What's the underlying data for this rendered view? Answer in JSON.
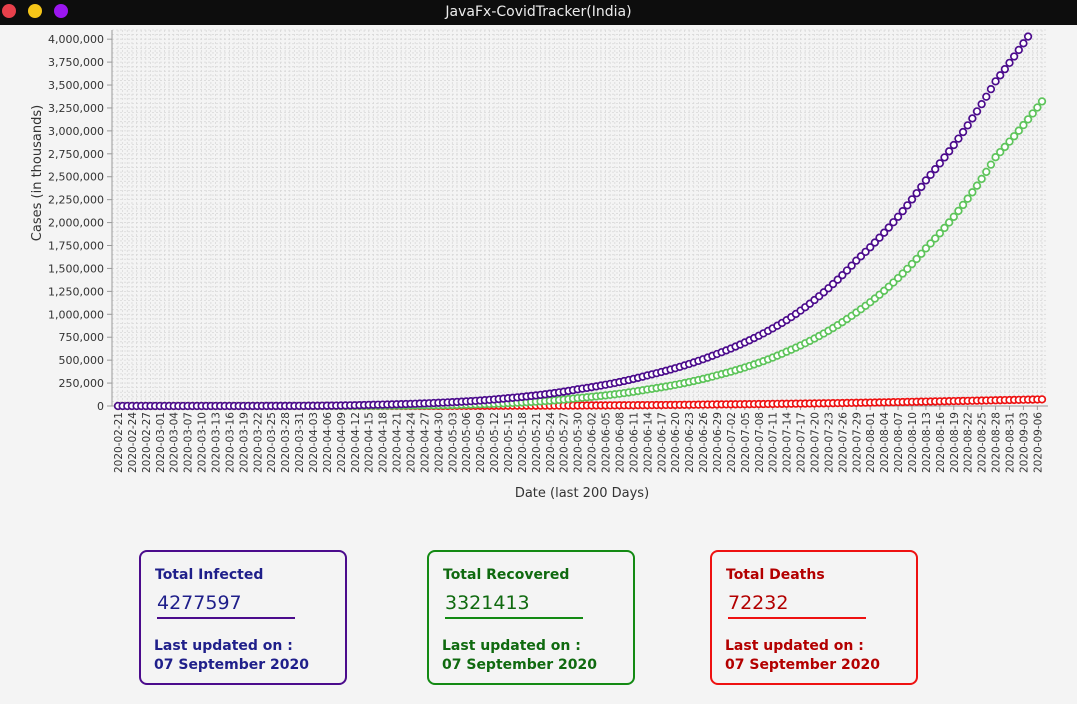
{
  "window": {
    "title": "JavaFx-CovidTracker(India)"
  },
  "colors": {
    "infected": "#4b0b8c",
    "recovered": "#5dc45a",
    "deaths": "#ee1111",
    "infected_text": "#1f1f8a",
    "recovered_text": "#0f6a0f",
    "deaths_text": "#b30000"
  },
  "chart_data": {
    "type": "scatter",
    "xlabel": "Date (last 200 Days)",
    "ylabel": "Cases (in thousands)",
    "ylim": [
      0,
      4100000
    ],
    "grid": true,
    "x_range": [
      "2020-02-21",
      "2020-09-07"
    ],
    "x_tick_labels": [
      "2020-02-21",
      "2020-02-24",
      "2020-02-27",
      "2020-03-01",
      "2020-03-04",
      "2020-03-07",
      "2020-03-10",
      "2020-03-13",
      "2020-03-16",
      "2020-03-19",
      "2020-03-22",
      "2020-03-25",
      "2020-03-28",
      "2020-03-31",
      "2020-04-03",
      "2020-04-06",
      "2020-04-09",
      "2020-04-12",
      "2020-04-15",
      "2020-04-18",
      "2020-04-21",
      "2020-04-24",
      "2020-04-27",
      "2020-04-30",
      "2020-05-03",
      "2020-05-06",
      "2020-05-09",
      "2020-05-12",
      "2020-05-15",
      "2020-05-18",
      "2020-05-21",
      "2020-05-24",
      "2020-05-27",
      "2020-05-30",
      "2020-06-02",
      "2020-06-05",
      "2020-06-08",
      "2020-06-11",
      "2020-06-14",
      "2020-06-17",
      "2020-06-20",
      "2020-06-23",
      "2020-06-26",
      "2020-06-29",
      "2020-07-02",
      "2020-07-05",
      "2020-07-08",
      "2020-07-11",
      "2020-07-14",
      "2020-07-17",
      "2020-07-20",
      "2020-07-23",
      "2020-07-26",
      "2020-07-29",
      "2020-08-01",
      "2020-08-04",
      "2020-08-07",
      "2020-08-10",
      "2020-08-13",
      "2020-08-16",
      "2020-08-19",
      "2020-08-22",
      "2020-08-25",
      "2020-08-28",
      "2020-08-31",
      "2020-09-03",
      "2020-09-06"
    ],
    "y_tick_labels": [
      "0",
      "250,000",
      "500,000",
      "750,000",
      "1,000,000",
      "1,250,000",
      "1,500,000",
      "1,750,000",
      "2,000,000",
      "2,250,000",
      "2,500,000",
      "2,750,000",
      "3,000,000",
      "3,250,000",
      "3,500,000",
      "3,750,000",
      "4,000,000"
    ],
    "series": [
      {
        "name": "Total Infected",
        "color": "#4b0b8c",
        "x": [
          "2020-02-21",
          "2020-03-10",
          "2020-03-31",
          "2020-04-15",
          "2020-04-30",
          "2020-05-15",
          "2020-05-30",
          "2020-06-14",
          "2020-06-29",
          "2020-07-14",
          "2020-07-29",
          "2020-08-13",
          "2020-08-28",
          "2020-09-06"
        ],
        "values": [
          3,
          50,
          1400,
          12000,
          35000,
          85000,
          182000,
          333000,
          567000,
          936000,
          1585000,
          2460000,
          3540000,
          4180000
        ]
      },
      {
        "name": "Total Recovered",
        "color": "#5dc45a",
        "x": [
          "2020-02-21",
          "2020-03-10",
          "2020-03-31",
          "2020-04-15",
          "2020-04-30",
          "2020-05-15",
          "2020-05-30",
          "2020-06-14",
          "2020-06-29",
          "2020-07-14",
          "2020-07-29",
          "2020-08-13",
          "2020-08-28",
          "2020-09-07"
        ],
        "values": [
          0,
          4,
          130,
          1500,
          9000,
          32000,
          86000,
          180000,
          334000,
          592000,
          1019000,
          1719000,
          2713000,
          3321413
        ]
      },
      {
        "name": "Total Deaths",
        "color": "#ee1111",
        "x": [
          "2020-02-21",
          "2020-03-10",
          "2020-03-31",
          "2020-04-15",
          "2020-04-30",
          "2020-05-15",
          "2020-05-30",
          "2020-06-14",
          "2020-06-29",
          "2020-07-14",
          "2020-07-29",
          "2020-08-13",
          "2020-08-28",
          "2020-09-07"
        ],
        "values": [
          0,
          0,
          40,
          400,
          1150,
          2750,
          5200,
          9500,
          16900,
          24300,
          34900,
          48000,
          62500,
          72232
        ]
      }
    ]
  },
  "cards": [
    {
      "id": "infected",
      "title": "Total Infected",
      "value": "4277597",
      "updated_label": "Last updated on :",
      "date": "07 September 2020"
    },
    {
      "id": "recovered",
      "title": "Total Recovered",
      "value": "3321413",
      "updated_label": "Last updated on :",
      "date": "07 September 2020"
    },
    {
      "id": "deaths",
      "title": "Total Deaths",
      "value": "72232",
      "updated_label": "Last updated on :",
      "date": "07 September 2020"
    }
  ]
}
